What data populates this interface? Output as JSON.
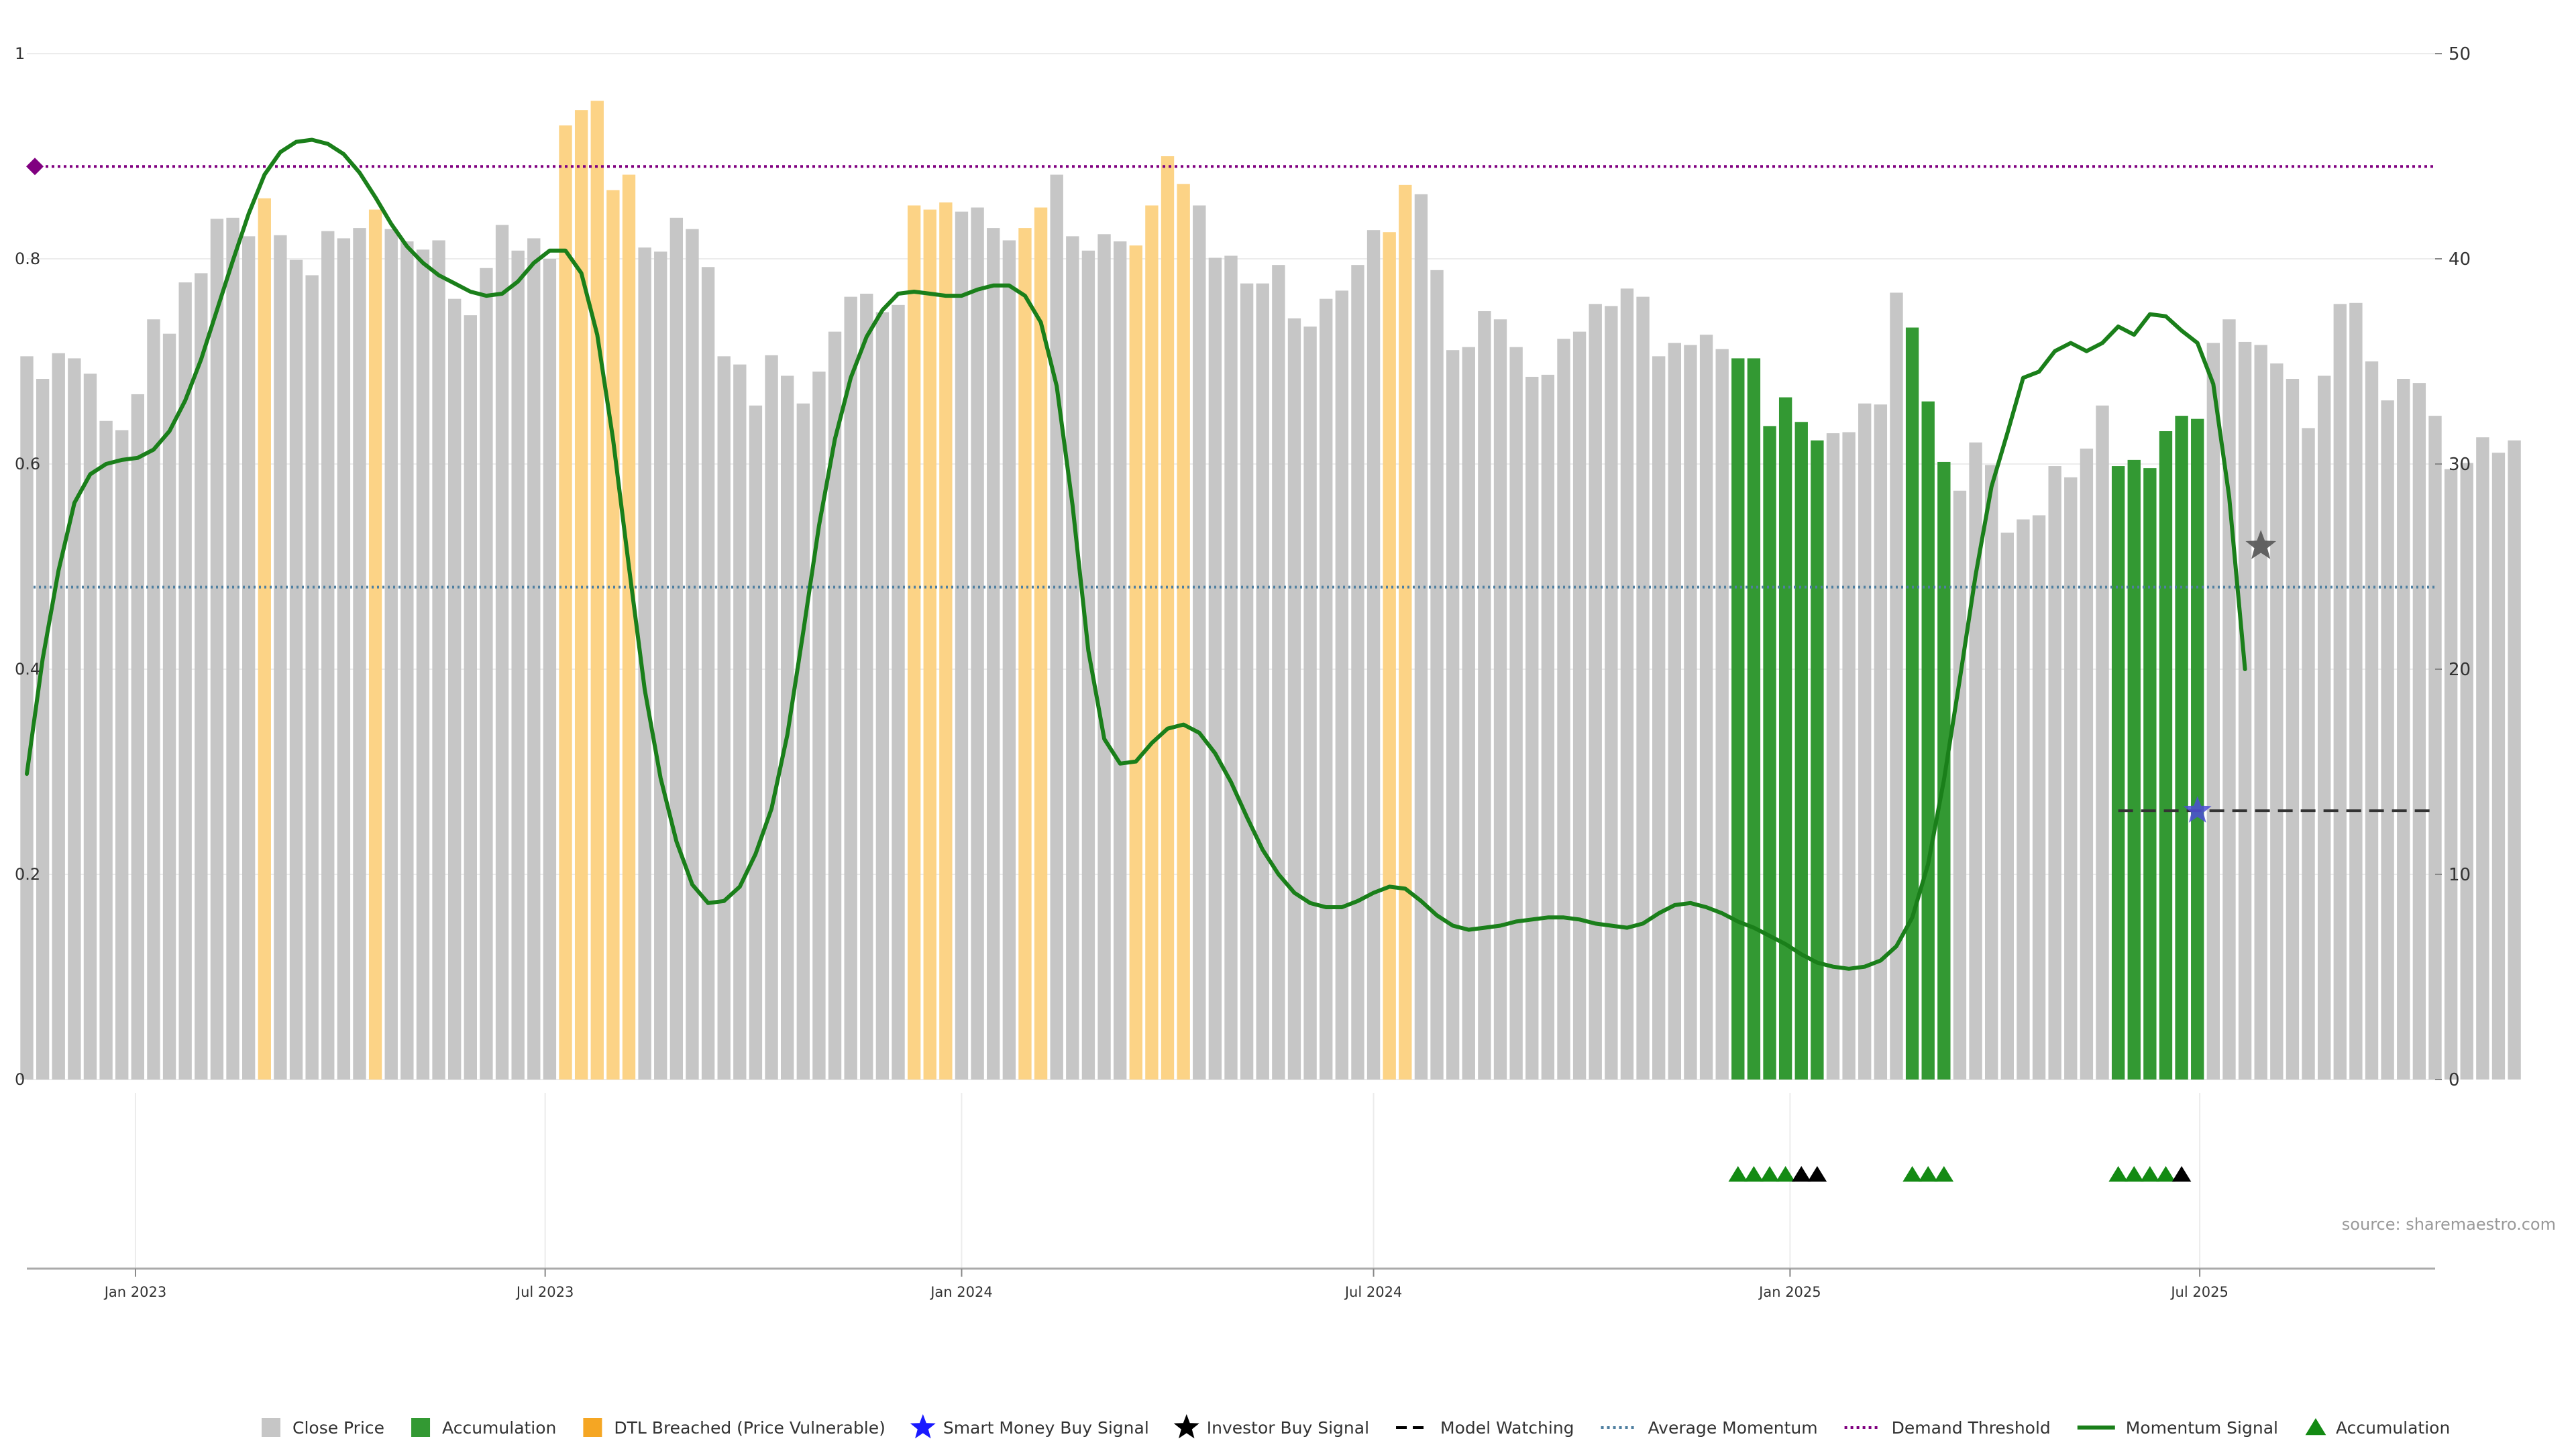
{
  "source_note": "source: sharemaestro.com",
  "colors": {
    "close_price": "#c6c6c6",
    "accumulation": "#339933",
    "dtl_breached": "#fcd386",
    "momentum": "#1a7f1a",
    "average_momentum": "#4f7fa0",
    "demand_threshold": "#800080",
    "smart_money": "#4d4dd6",
    "investor": "#555555",
    "grid": "#ececec"
  },
  "chart_data": {
    "type": "bar",
    "left_axis": {
      "range": [
        0,
        1
      ],
      "ticks": [
        0,
        0.2,
        0.4,
        0.6,
        0.8,
        1
      ],
      "tick_labels": [
        "0",
        "0.2",
        "0.4",
        "0.6",
        "0.8",
        "1"
      ]
    },
    "right_axis": {
      "range": [
        0,
        50
      ],
      "ticks": [
        0,
        10,
        20,
        30,
        40,
        50
      ],
      "tick_labels": [
        "0",
        "10",
        "20",
        "30",
        "40",
        "50"
      ]
    },
    "x_axis": {
      "start": "2022-11-14",
      "end": "2025-10-13",
      "ticks": [
        {
          "date": "2023-01-01",
          "label": "Jan 2023"
        },
        {
          "date": "2023-07-01",
          "label": "Jul 2023"
        },
        {
          "date": "2024-01-01",
          "label": "Jan 2024"
        },
        {
          "date": "2024-07-01",
          "label": "Jul 2024"
        },
        {
          "date": "2025-01-01",
          "label": "Jan 2025"
        },
        {
          "date": "2025-07-01",
          "label": "Jul 2025"
        }
      ]
    },
    "grid": true,
    "legend_position": "bottom",
    "close_price": {
      "first_week": "2022-11-14",
      "values": [
        0.705,
        0.683,
        0.708,
        0.703,
        0.688,
        0.642,
        0.633,
        0.668,
        0.741,
        0.727,
        0.777,
        0.786,
        0.839,
        0.84,
        0.822,
        0.859,
        0.823,
        0.799,
        0.784,
        0.827,
        0.82,
        0.83,
        0.848,
        0.829,
        0.817,
        0.809,
        0.818,
        0.761,
        0.745,
        0.791,
        0.833,
        0.808,
        0.82,
        0.8,
        0.93,
        0.945,
        0.954,
        0.867,
        0.882,
        0.811,
        0.807,
        0.84,
        0.829,
        0.792,
        0.705,
        0.697,
        0.657,
        0.706,
        0.686,
        0.659,
        0.69,
        0.729,
        0.763,
        0.766,
        0.748,
        0.755,
        0.852,
        0.848,
        0.855,
        0.846,
        0.85,
        0.83,
        0.818,
        0.83,
        0.85,
        0.882,
        0.822,
        0.808,
        0.824,
        0.817,
        0.813,
        0.852,
        0.9,
        0.873,
        0.852,
        0.801,
        0.803,
        0.776,
        0.776,
        0.794,
        0.742,
        0.734,
        0.761,
        0.769,
        0.794,
        0.828,
        0.826,
        0.872,
        0.863,
        0.789,
        0.711,
        0.714,
        0.749,
        0.741,
        0.714,
        0.685,
        0.687,
        0.722,
        0.729,
        0.756,
        0.754,
        0.771,
        0.763,
        0.705,
        0.718,
        0.716,
        0.726,
        0.712,
        0.703,
        0.703,
        0.637,
        0.665,
        0.641,
        0.623,
        0.63,
        0.631,
        0.659,
        0.658,
        0.767,
        0.733,
        0.661,
        0.602,
        0.574,
        0.621,
        0.599,
        0.533,
        0.546,
        0.55,
        0.598,
        0.587,
        0.615,
        0.657,
        0.598,
        0.604,
        0.596,
        0.632,
        0.647,
        0.644,
        0.718,
        0.741,
        0.719,
        0.716,
        0.698,
        0.683,
        0.635,
        0.686,
        0.756,
        0.757,
        0.7,
        0.662,
        0.683,
        0.679,
        0.647,
        0.595,
        0.601,
        0.626,
        0.611,
        0.623
      ],
      "dtl_breached_indices": [
        15,
        22,
        34,
        35,
        36,
        37,
        38,
        56,
        57,
        58,
        63,
        64,
        70,
        71,
        72,
        73,
        86,
        87
      ],
      "accumulation_indices": [
        108,
        109,
        110,
        111,
        112,
        113,
        119,
        120,
        121,
        132,
        133,
        134,
        135,
        136,
        137
      ]
    },
    "momentum_signal": {
      "first_week": "2022-11-14",
      "values": [
        14.9,
        20.5,
        24.8,
        28.1,
        29.5,
        30.0,
        30.2,
        30.3,
        30.7,
        31.6,
        33.1,
        35.1,
        37.5,
        39.9,
        42.2,
        44.1,
        45.2,
        45.7,
        45.8,
        45.6,
        45.1,
        44.2,
        43.0,
        41.7,
        40.6,
        39.8,
        39.2,
        38.8,
        38.4,
        38.2,
        38.3,
        38.9,
        39.8,
        40.4,
        40.4,
        39.3,
        36.3,
        31.2,
        25.0,
        19.0,
        14.7,
        11.6,
        9.5,
        8.6,
        8.7,
        9.4,
        11.0,
        13.2,
        16.8,
        21.8,
        27.0,
        31.2,
        34.2,
        36.2,
        37.5,
        38.3,
        38.4,
        38.3,
        38.2,
        38.2,
        38.5,
        38.7,
        38.7,
        38.2,
        36.9,
        33.8,
        28.0,
        20.9,
        16.6,
        15.4,
        15.5,
        16.4,
        17.1,
        17.3,
        16.9,
        15.9,
        14.5,
        12.8,
        11.2,
        10.0,
        9.1,
        8.6,
        8.4,
        8.4,
        8.7,
        9.1,
        9.4,
        9.3,
        8.7,
        8.0,
        7.5,
        7.3,
        7.4,
        7.5,
        7.7,
        7.8,
        7.9,
        7.9,
        7.8,
        7.6,
        7.5,
        7.4,
        7.6,
        8.1,
        8.5,
        8.6,
        8.4,
        8.1,
        7.7,
        7.4,
        7.0,
        6.6,
        6.1,
        5.7,
        5.5,
        5.4,
        5.5,
        5.8,
        6.5,
        7.9,
        10.5,
        14.6,
        19.5,
        24.6,
        28.9,
        31.5,
        34.2,
        34.5,
        35.5,
        35.9,
        35.5,
        35.9,
        36.7,
        36.3,
        37.3,
        37.2,
        36.5,
        35.9,
        33.9,
        28.4,
        20.0
      ]
    },
    "average_momentum": 24.0,
    "demand_threshold": 44.5,
    "model_watching": {
      "start": "2025-05-26",
      "end": "2025-10-13",
      "level": 13.1
    },
    "smart_money_buy_signal": {
      "date": "2025-06-30",
      "value": 13.1
    },
    "investor_buy_signal": {
      "date": "2025-07-28",
      "value": 26.0
    },
    "accumulation_markers": {
      "green_indices": [
        108,
        109,
        110,
        111,
        119,
        120,
        121,
        132,
        133,
        134,
        135
      ],
      "black_indices": [
        112,
        113,
        136
      ]
    },
    "legend": [
      {
        "key": "close_price",
        "label": "Close Price",
        "symbol": "square"
      },
      {
        "key": "accumulation",
        "label": "Accumulation",
        "symbol": "square"
      },
      {
        "key": "dtl_breached",
        "label": "DTL Breached (Price Vulnerable)",
        "symbol": "square"
      },
      {
        "key": "smart_money",
        "label": "Smart Money Buy Signal",
        "symbol": "star-blue"
      },
      {
        "key": "investor",
        "label": "Investor Buy Signal",
        "symbol": "star-black"
      },
      {
        "key": "model_watching",
        "label": "Model Watching",
        "symbol": "dash-black"
      },
      {
        "key": "average_momentum",
        "label": "Average Momentum",
        "symbol": "dot-blue"
      },
      {
        "key": "demand_threshold",
        "label": "Demand Threshold",
        "symbol": "dot-purple"
      },
      {
        "key": "momentum_signal",
        "label": "Momentum Signal",
        "symbol": "line-green"
      },
      {
        "key": "accumulation_marker",
        "label": "Accumulation",
        "symbol": "triangle-green"
      }
    ]
  }
}
